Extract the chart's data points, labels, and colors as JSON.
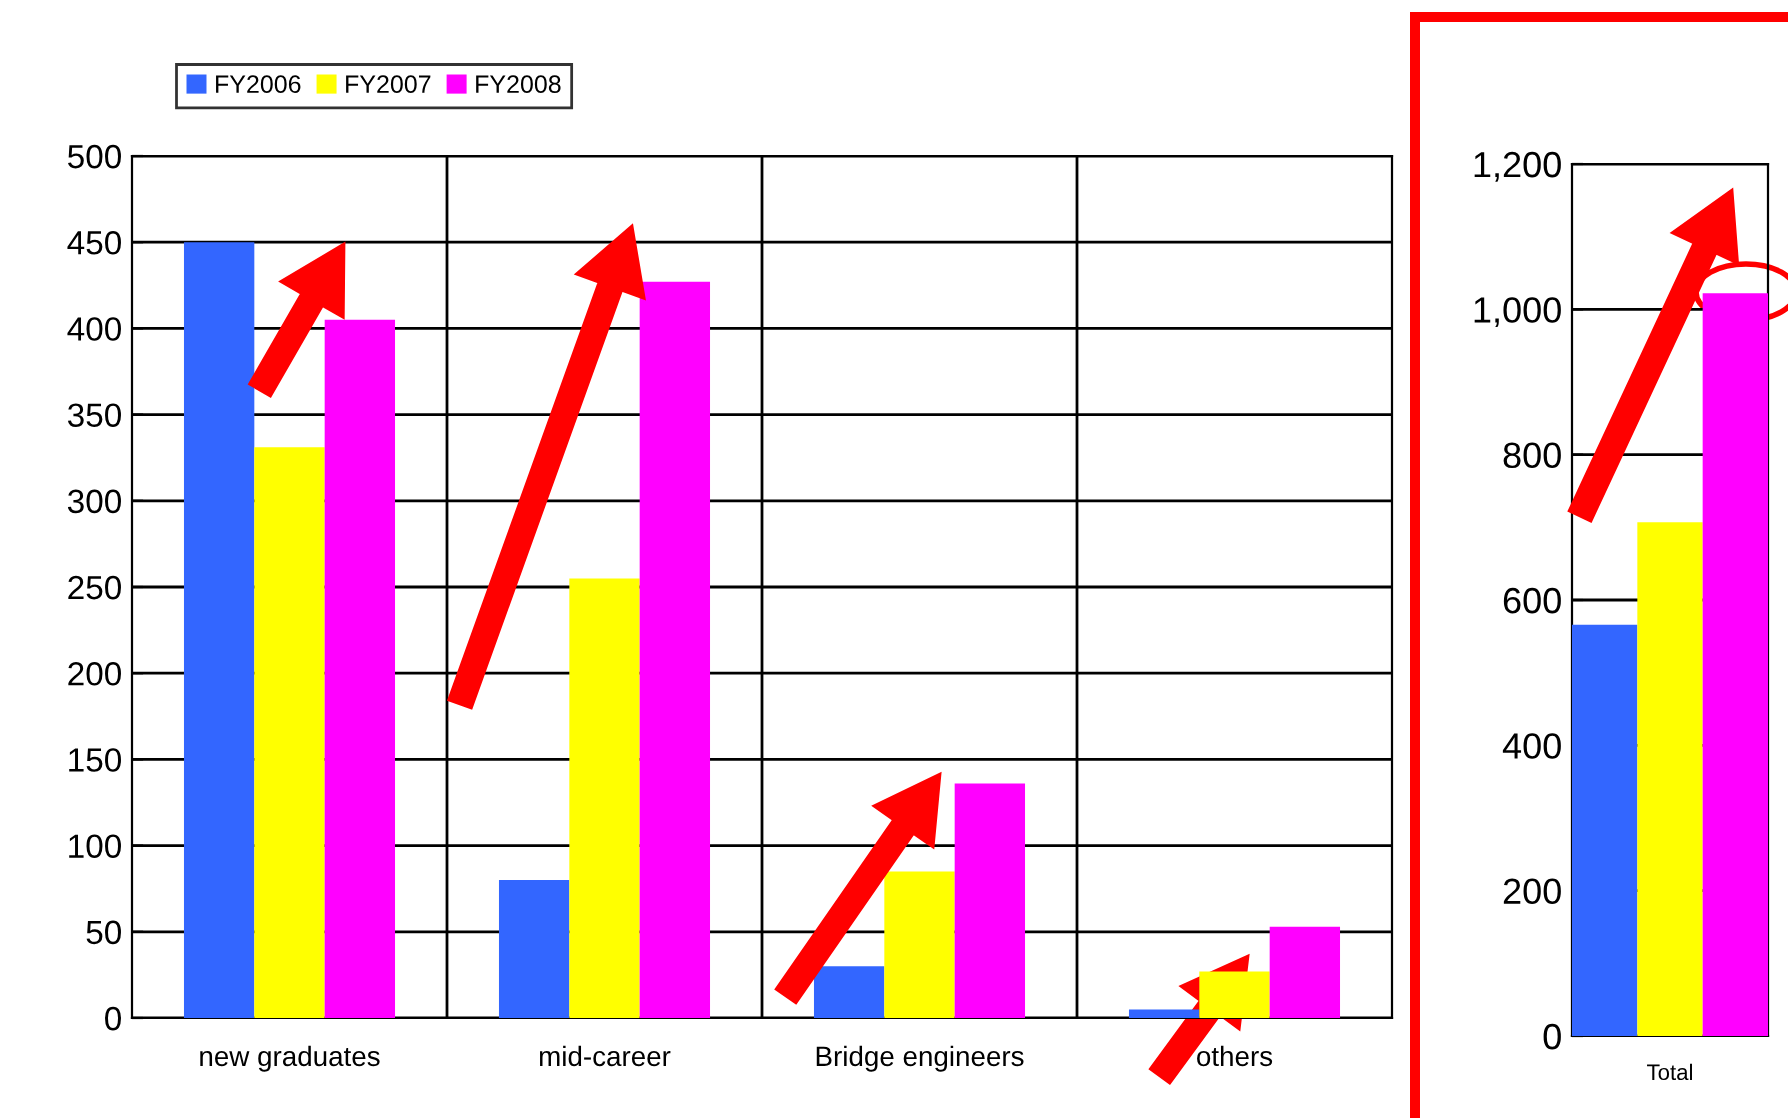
{
  "chart_data": [
    {
      "type": "bar",
      "categories": [
        "new graduates",
        "mid-career",
        "Bridge engineers",
        "others"
      ],
      "series": [
        {
          "name": "FY2006",
          "color": "#3366ff",
          "values": [
            450,
            80,
            30,
            5
          ]
        },
        {
          "name": "FY2007",
          "color": "#ffff00",
          "values": [
            331,
            255,
            85,
            27
          ]
        },
        {
          "name": "FY2008",
          "color": "#ff00ff",
          "values": [
            405,
            427,
            136,
            53
          ]
        }
      ],
      "ylim": [
        0,
        500
      ],
      "yticks": [
        0,
        50,
        100,
        150,
        200,
        250,
        300,
        350,
        400,
        450,
        500
      ],
      "grid": true,
      "legend": "top left"
    },
    {
      "type": "bar",
      "categories": [
        "Total"
      ],
      "series": [
        {
          "color": "#3366ff",
          "values": [
            566
          ]
        },
        {
          "color": "#ffff00",
          "values": [
            707
          ]
        },
        {
          "color": "#ff00ff",
          "values": [
            1022
          ]
        }
      ],
      "ylim": [
        0,
        1200
      ],
      "yticks": [
        {
          "value": 0,
          "label": "0"
        },
        {
          "value": 200,
          "label": "200"
        },
        {
          "value": 400,
          "label": "400"
        },
        {
          "value": 600,
          "label": "600"
        },
        {
          "value": 800,
          "label": "800"
        },
        {
          "value": 1000,
          "label": "1,000"
        },
        {
          "value": 1200,
          "label": "1,200"
        }
      ],
      "grid": "y"
    }
  ]
}
